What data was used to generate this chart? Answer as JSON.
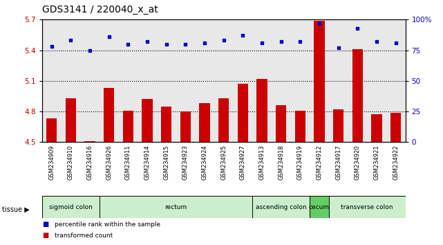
{
  "title": "GDS3141 / 220040_x_at",
  "samples": [
    "GSM234909",
    "GSM234910",
    "GSM234916",
    "GSM234926",
    "GSM234911",
    "GSM234914",
    "GSM234915",
    "GSM234923",
    "GSM234924",
    "GSM234925",
    "GSM234927",
    "GSM234913",
    "GSM234918",
    "GSM234919",
    "GSM234912",
    "GSM234917",
    "GSM234920",
    "GSM234921",
    "GSM234922"
  ],
  "bar_values": [
    4.73,
    4.93,
    4.51,
    5.03,
    4.81,
    4.92,
    4.85,
    4.8,
    4.88,
    4.93,
    5.07,
    5.12,
    4.86,
    4.81,
    5.69,
    4.82,
    5.41,
    4.77,
    4.79
  ],
  "dot_values": [
    78,
    83,
    75,
    86,
    80,
    82,
    80,
    80,
    81,
    83,
    87,
    81,
    82,
    82,
    97,
    77,
    93,
    82,
    81
  ],
  "ylim_left": [
    4.5,
    5.7
  ],
  "ylim_right": [
    0,
    100
  ],
  "yticks_left": [
    4.5,
    4.8,
    5.1,
    5.4,
    5.7
  ],
  "ytick_labels_left": [
    "4.5",
    "4.8",
    "5.1",
    "5.4",
    "5.7"
  ],
  "yticks_right": [
    0,
    25,
    50,
    75,
    100
  ],
  "ytick_labels_right": [
    "0",
    "25",
    "50",
    "75",
    "100%"
  ],
  "hlines": [
    4.8,
    5.1,
    5.4
  ],
  "bar_color": "#cc0000",
  "dot_color": "#0000cc",
  "tissue_groups": [
    {
      "label": "sigmoid colon",
      "start": 0,
      "end": 3,
      "color": "#cceecc"
    },
    {
      "label": "rectum",
      "start": 3,
      "end": 11,
      "color": "#cceecc"
    },
    {
      "label": "ascending colon",
      "start": 11,
      "end": 14,
      "color": "#cceecc"
    },
    {
      "label": "cecum",
      "start": 14,
      "end": 15,
      "color": "#66cc66"
    },
    {
      "label": "transverse colon",
      "start": 15,
      "end": 19,
      "color": "#cceecc"
    }
  ],
  "tissue_label": "tissue",
  "legend_bar": "transformed count",
  "legend_dot": "percentile rank within the sample",
  "background_color": "#ffffff",
  "plot_bg": "#e8e8e8",
  "xlabel_bg": "#d0d0d0",
  "title_fontsize": 10,
  "axis_label_color_left": "#cc0000",
  "axis_label_color_right": "#0000cc"
}
